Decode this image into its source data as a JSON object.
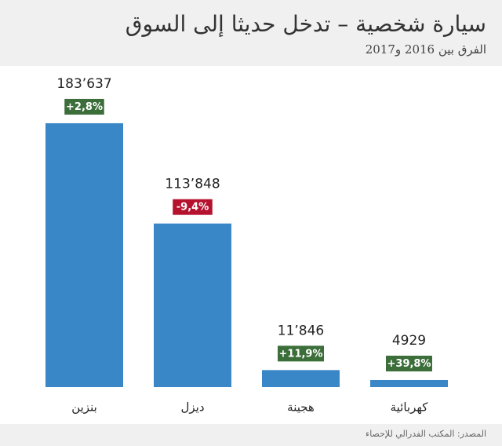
{
  "chart_data": {
    "type": "bar",
    "title": "سيارة شخصية – تدخل حديثا إلى السوق",
    "subtitle": "الفرق بين 2016 و2017",
    "source": "المصدر: المكتب الفدرالي للإحصاء",
    "categories": [
      "بنزين",
      "ديزل",
      "هجينة",
      "كهربائية"
    ],
    "values": [
      183637,
      113848,
      11846,
      4929
    ],
    "value_labels": [
      "183’637",
      "113’848",
      "11’846",
      "4929"
    ],
    "changes": [
      2.8,
      -9.4,
      11.9,
      39.8
    ],
    "change_labels": [
      "+2,8%",
      "-9,4%",
      "+11,9%",
      "+39,8%"
    ],
    "color": "#3a87c8",
    "ylim": [
      0,
      200000
    ]
  }
}
